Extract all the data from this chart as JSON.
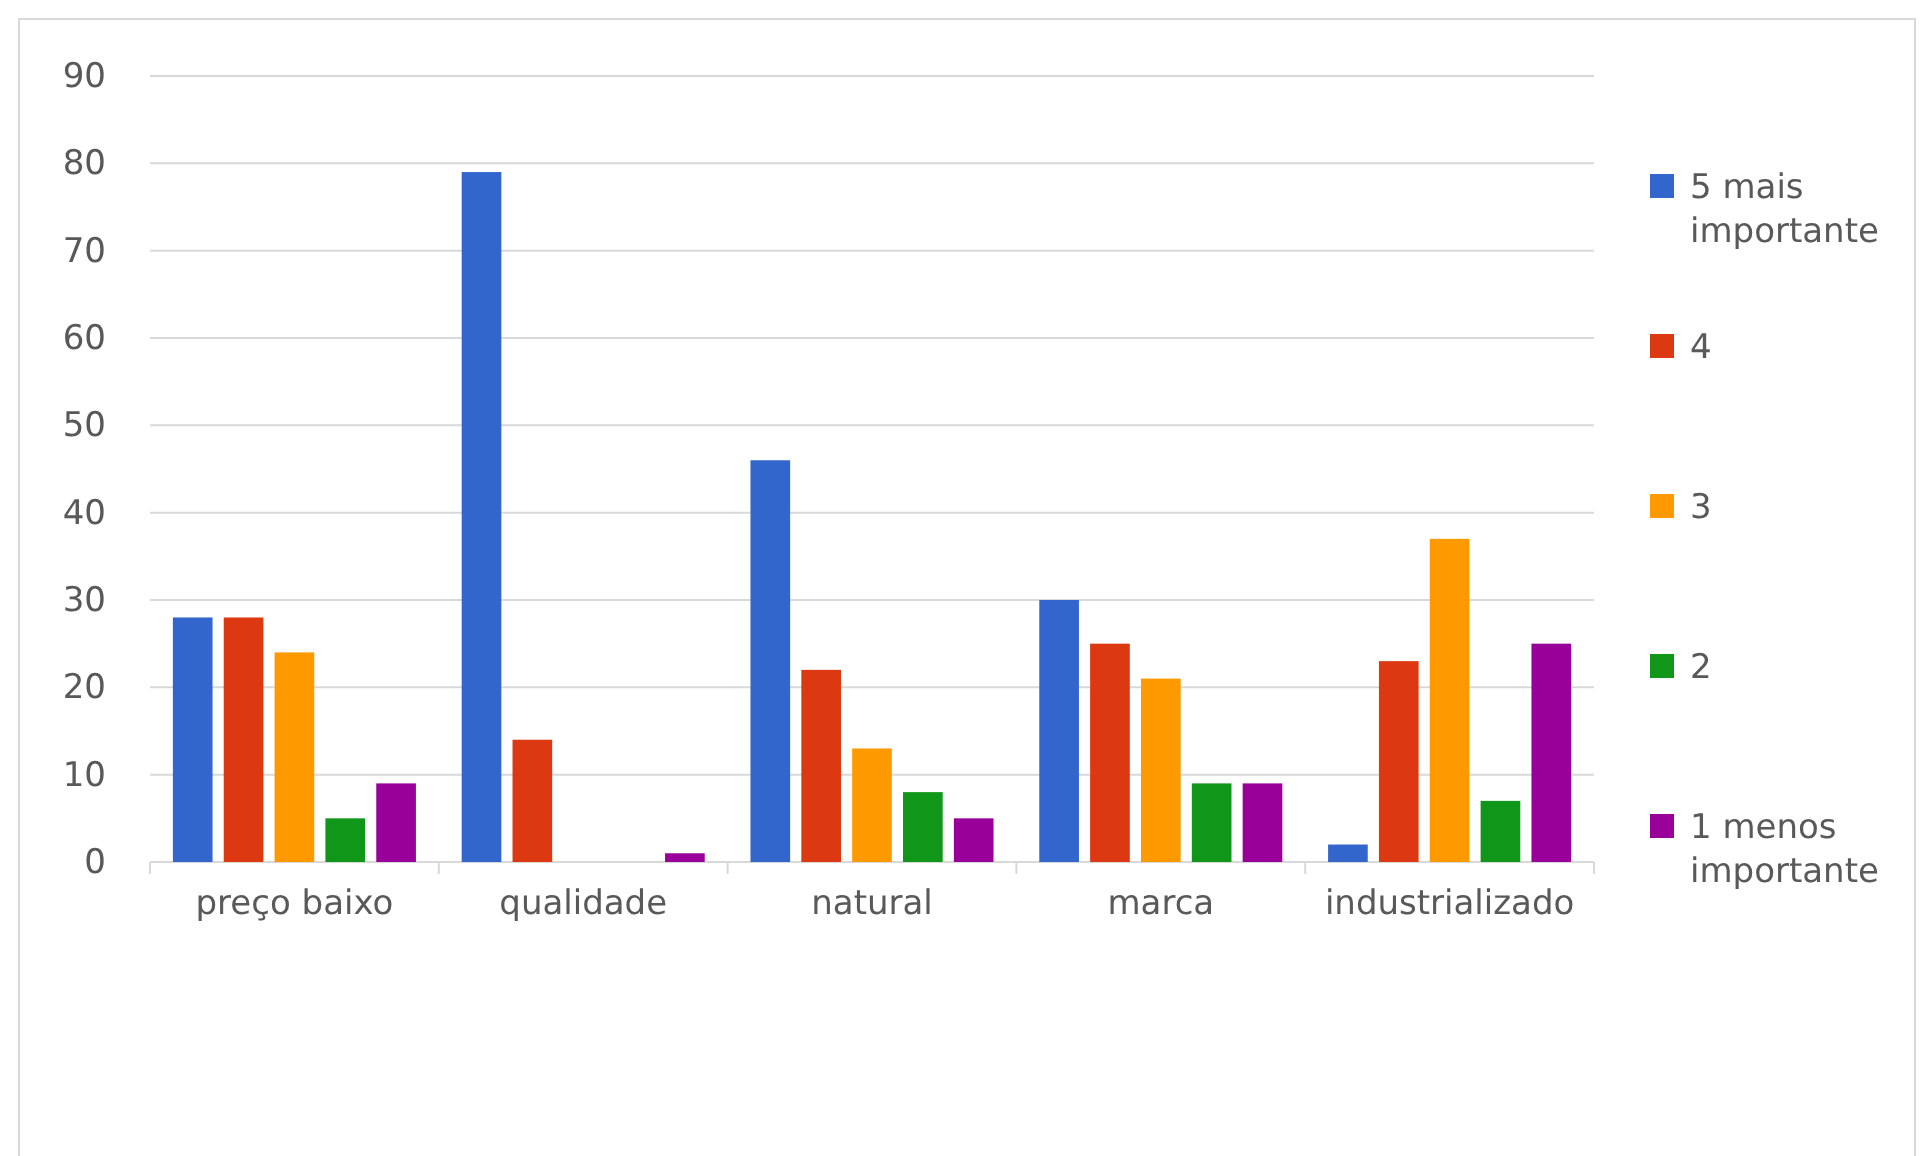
{
  "chart_data": {
    "type": "bar",
    "categories": [
      "preço baixo",
      "qualidade",
      "natural",
      "marca",
      "industrializado"
    ],
    "series": [
      {
        "name": "5 mais importante",
        "color": "#3366cc",
        "values": [
          28,
          79,
          46,
          30,
          2
        ]
      },
      {
        "name": "4",
        "color": "#dc3912",
        "values": [
          28,
          14,
          22,
          25,
          23
        ]
      },
      {
        "name": "3",
        "color": "#ff9900",
        "values": [
          24,
          0,
          13,
          21,
          37
        ]
      },
      {
        "name": "2",
        "color": "#109618",
        "values": [
          5,
          0,
          8,
          9,
          7
        ]
      },
      {
        "name": "1 menos importante",
        "color": "#990099",
        "values": [
          9,
          1,
          5,
          9,
          25
        ]
      }
    ],
    "ylim": [
      0,
      90
    ],
    "yticks": [
      0,
      10,
      20,
      30,
      40,
      50,
      60,
      70,
      80,
      90
    ],
    "grid": "y",
    "legend": "right"
  }
}
